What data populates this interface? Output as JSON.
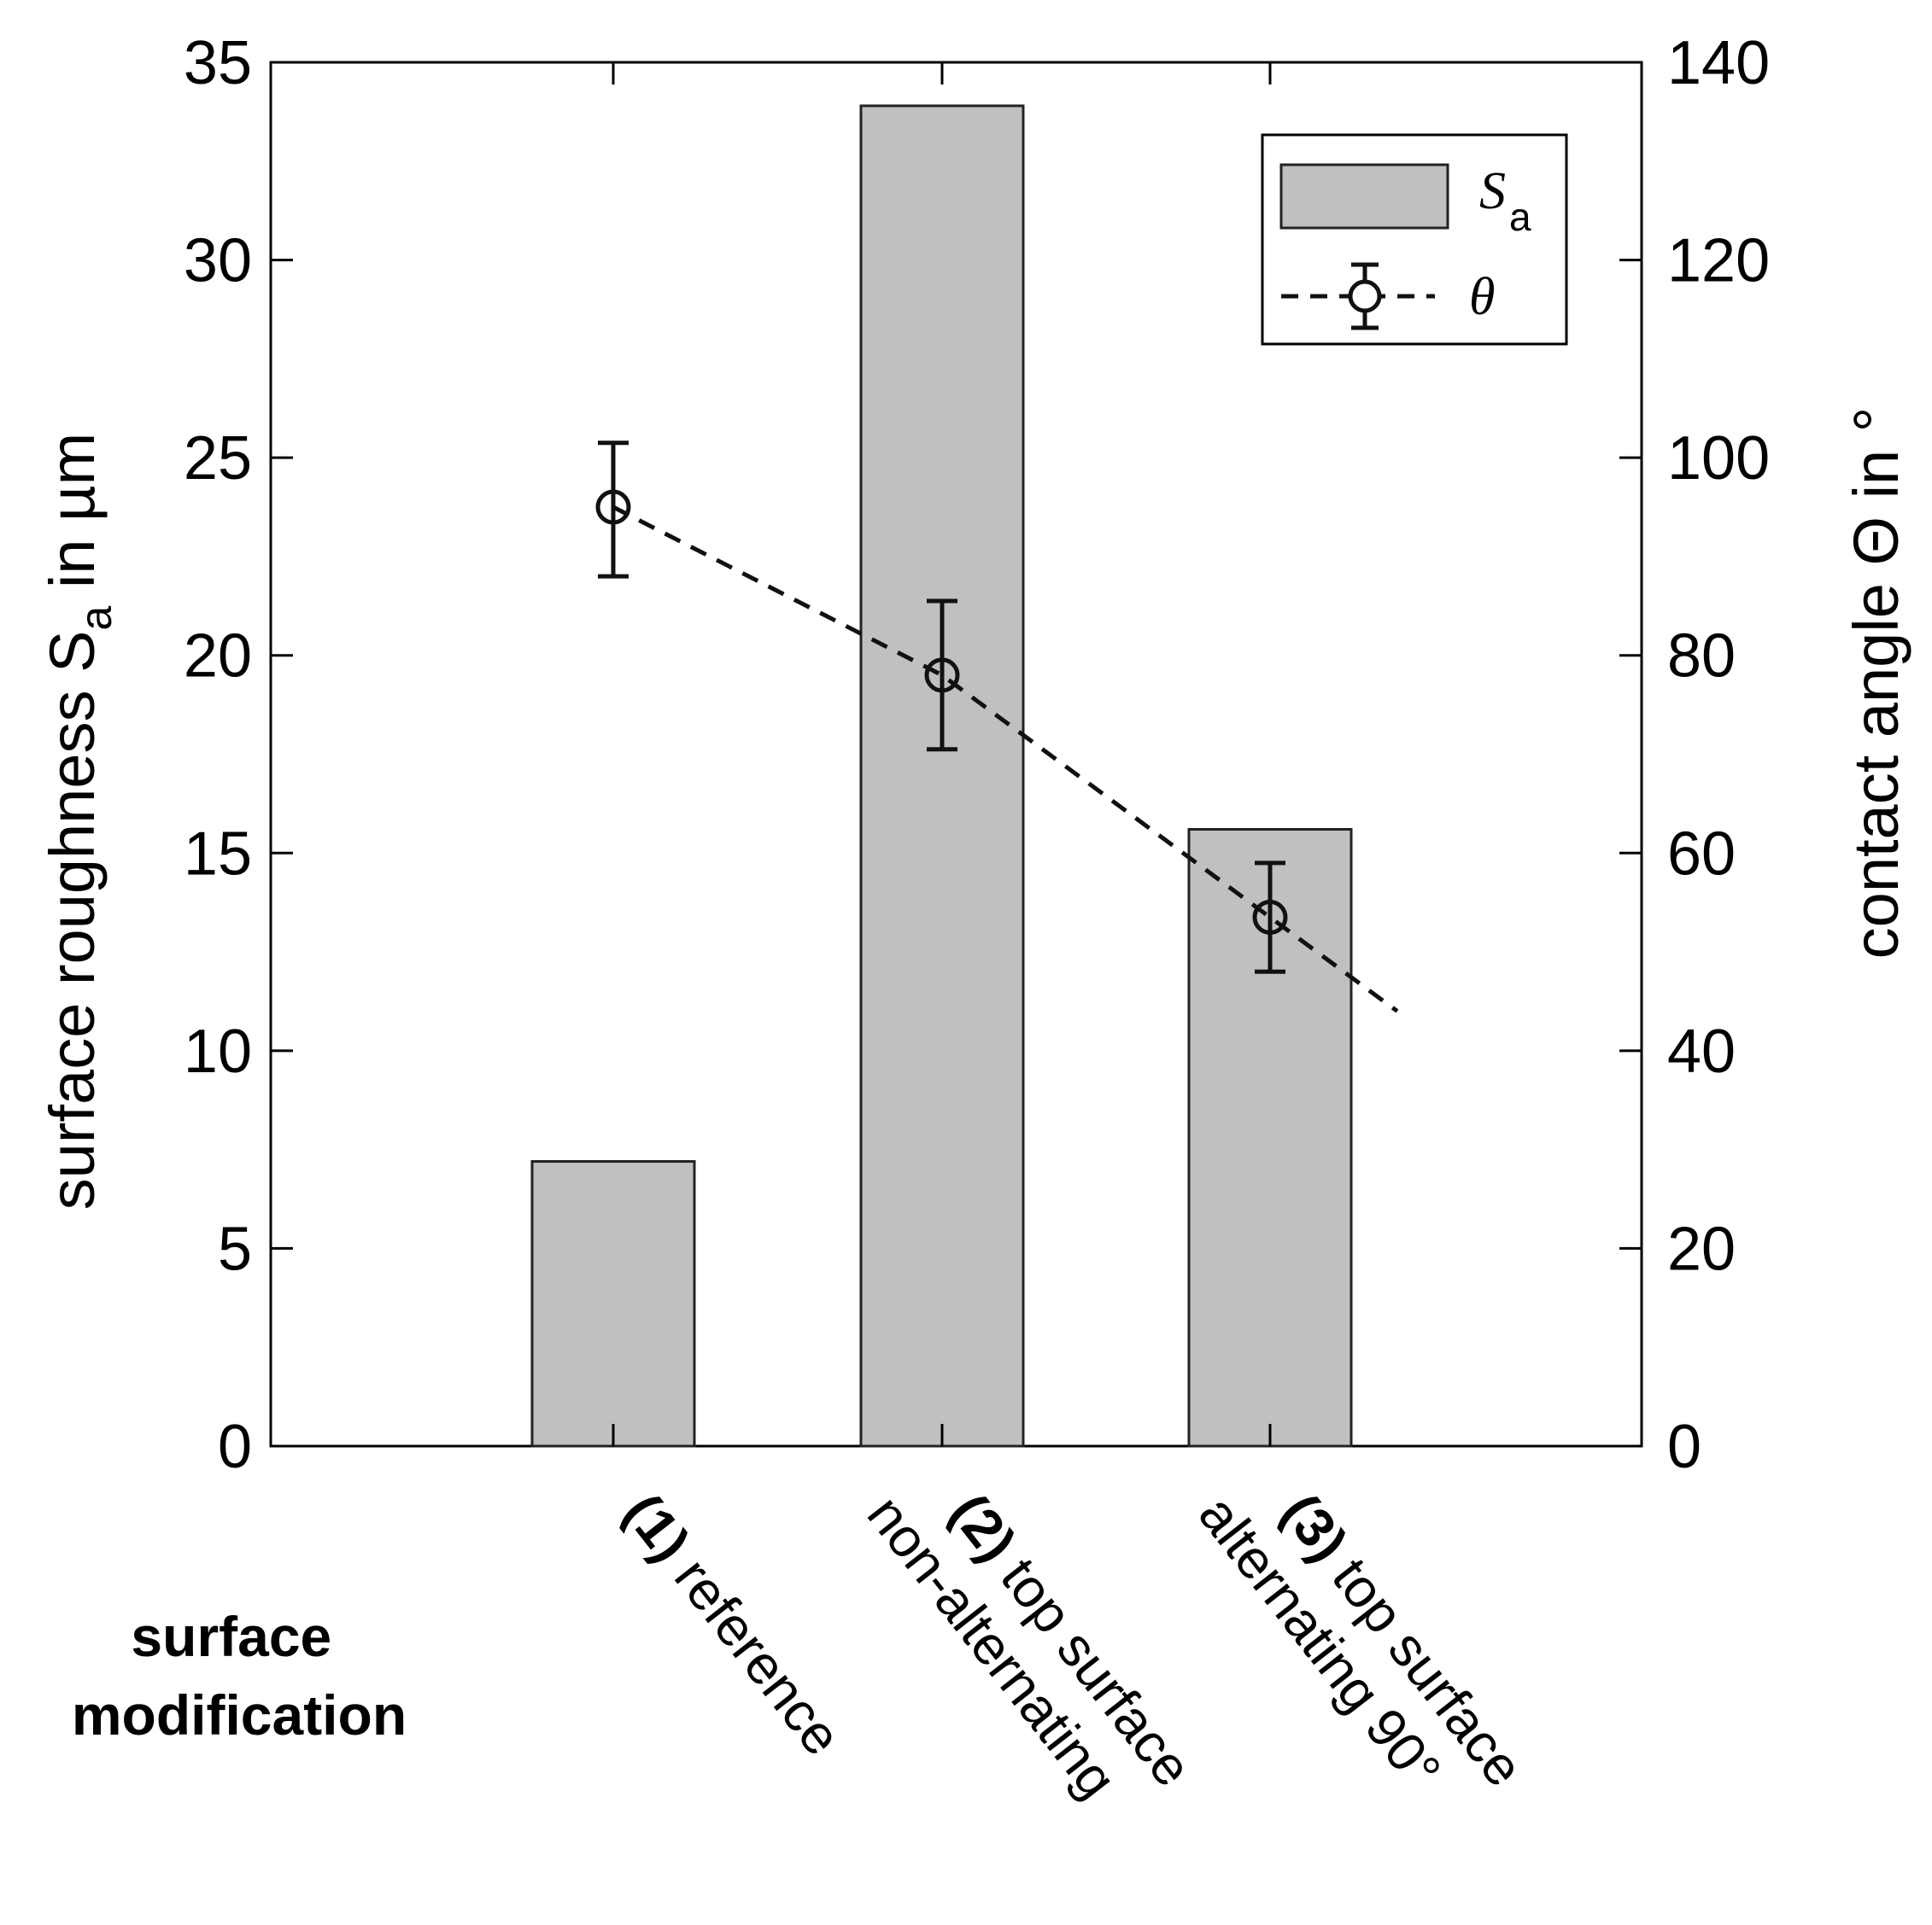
{
  "chart_data": {
    "type": "bar",
    "title": "",
    "categories": [
      {
        "num": "(1)",
        "lines": [
          "reference"
        ]
      },
      {
        "num": "(2)",
        "lines": [
          "top surface",
          "non-alternating"
        ]
      },
      {
        "num": "(3)",
        "lines": [
          "top surface",
          "alternating 90°"
        ]
      }
    ],
    "series": [
      {
        "name": "S",
        "name_sub": "a",
        "axis": "left",
        "type": "bar",
        "values": [
          7.2,
          33.9,
          15.6
        ]
      },
      {
        "name": "θ",
        "axis": "right",
        "type": "line-errorbar",
        "values": [
          95,
          78,
          53.5
        ],
        "err_low": [
          7,
          7.5,
          5.5
        ],
        "err_high": [
          6.5,
          7.5,
          5.5
        ],
        "trend_end": 44
      }
    ],
    "left_axis": {
      "label_main": "surface roughness S",
      "label_sub": "a",
      "label_tail": " in µm",
      "ylim": [
        0,
        35
      ],
      "ticks": [
        "0",
        "5",
        "10",
        "15",
        "20",
        "25",
        "30",
        "35"
      ]
    },
    "right_axis": {
      "label": "contact angle Θ in °",
      "ylim": [
        0,
        140
      ],
      "ticks": [
        "0",
        "20",
        "40",
        "60",
        "80",
        "100",
        "120",
        "140"
      ]
    },
    "xlabel_row_title": [
      "surface",
      "modification"
    ],
    "legend_position": "top-right",
    "grid": false,
    "colors": {
      "bar_fill": "#c0c0c0",
      "bar_stroke": "#222222",
      "line": "#111111",
      "axis": "#000000"
    }
  }
}
